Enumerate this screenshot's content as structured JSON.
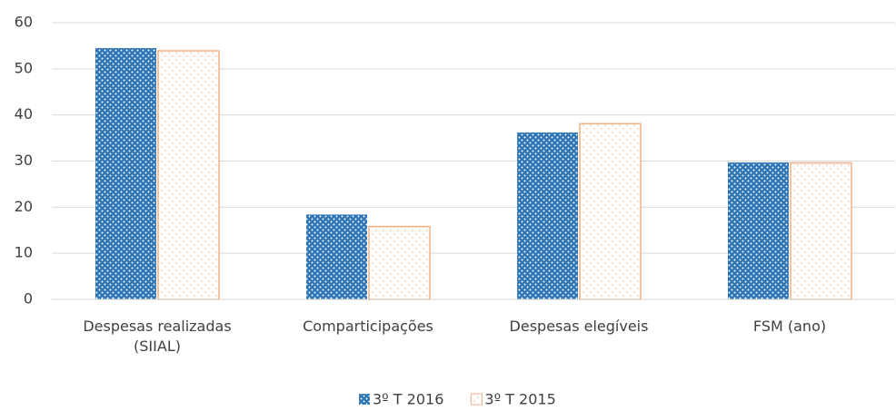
{
  "chart_data": {
    "type": "bar",
    "categories": [
      "Despesas realizadas (SIIAL)",
      "Comparticipações",
      "Despesas elegíveis",
      "FSM (ano)"
    ],
    "series": [
      {
        "name": "3º T 2016",
        "color": "#2e75b6",
        "values": [
          54.5,
          18.4,
          36.2,
          29.7
        ]
      },
      {
        "name": "3º T 2015",
        "color": "#f4b183",
        "values": [
          53.9,
          15.8,
          38.1,
          29.6
        ]
      }
    ],
    "ylim": [
      0,
      60
    ],
    "yticks": [
      0,
      10,
      20,
      30,
      40,
      50,
      60
    ],
    "grid": true
  }
}
